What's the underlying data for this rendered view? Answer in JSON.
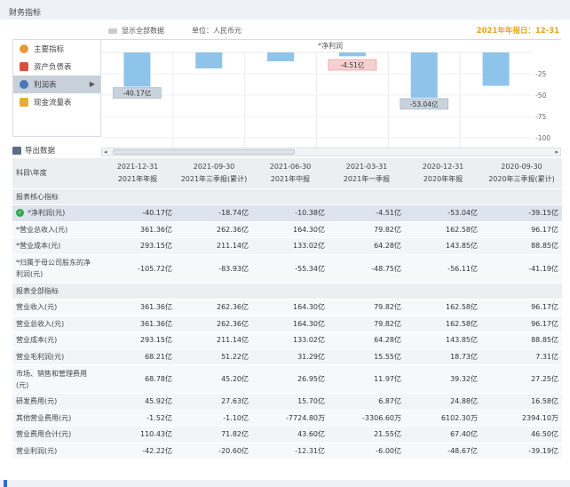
{
  "header": {
    "title": "财务指标"
  },
  "options": {
    "show_all": "显示全部数据",
    "unit": "单位：人民币元",
    "report_date": "2021年年报日：12-31"
  },
  "sidebar": {
    "items": [
      {
        "label": "主要指标",
        "icon": "orange-dot-icon",
        "color": "#e69a3a"
      },
      {
        "label": "资产负债表",
        "icon": "red-sheet-icon",
        "color": "#d94f3d"
      },
      {
        "label": "利润表",
        "icon": "globe-icon",
        "color": "#4a78b8",
        "active": true
      },
      {
        "label": "现金流量表",
        "icon": "cash-flow-icon",
        "color": "#e4b02c"
      }
    ]
  },
  "chart_data": {
    "type": "bar",
    "title": "*净利润",
    "categories": [
      "2021-12-31",
      "2021-09-30",
      "2021-06-30",
      "2021-03-31",
      "2020-12-31",
      "2020-09-30"
    ],
    "values": [
      -40.17,
      -18.74,
      -10.38,
      -4.51,
      -53.04,
      -39.15
    ],
    "labels": [
      "-40.17亿",
      "",
      "",
      "-4.51亿",
      "-53.04亿",
      ""
    ],
    "ylim": [
      -110,
      0
    ],
    "yticks": [
      "-25",
      "-50",
      "-75",
      "-100"
    ],
    "grid": true
  },
  "export_label": "导出数据",
  "table": {
    "corner": "科目\\年度",
    "columns": [
      {
        "date": "2021-12-31",
        "type": "2021年年报"
      },
      {
        "date": "2021-09-30",
        "type": "2021年三季报(累计)"
      },
      {
        "date": "2021-06-30",
        "type": "2021年中报"
      },
      {
        "date": "2021-03-31",
        "type": "2021年一季报"
      },
      {
        "date": "2020-12-31",
        "type": "2020年年报"
      },
      {
        "date": "2020-09-30",
        "type": "2020年三季报(累计)"
      }
    ],
    "section1": "报表核心指标",
    "section2": "报表全部指标",
    "rows1": [
      {
        "label": "*净利润(元)",
        "values": [
          "-40.17亿",
          "-18.74亿",
          "-10.38亿",
          "-4.51亿",
          "-53.04亿",
          "-39.15亿"
        ]
      },
      {
        "label": "*营业总收入(元)",
        "values": [
          "361.36亿",
          "262.36亿",
          "164.30亿",
          "79.82亿",
          "162.58亿",
          "96.17亿"
        ]
      },
      {
        "label": "*营业成本(元)",
        "values": [
          "293.15亿",
          "211.14亿",
          "133.02亿",
          "64.28亿",
          "143.85亿",
          "88.85亿"
        ]
      },
      {
        "label": "*归属于母公司股东的净利润(元)",
        "values": [
          "-105.72亿",
          "-83.93亿",
          "-55.34亿",
          "-48.75亿",
          "-56.11亿",
          "-41.19亿"
        ]
      }
    ],
    "rows2": [
      {
        "label": "营业收入(元)",
        "values": [
          "361.36亿",
          "262.36亿",
          "164.30亿",
          "79.82亿",
          "162.58亿",
          "96.17亿"
        ]
      },
      {
        "label": "营业总收入(元)",
        "values": [
          "361.36亿",
          "262.36亿",
          "164.30亿",
          "79.82亿",
          "162.58亿",
          "96.17亿"
        ]
      },
      {
        "label": "营业成本(元)",
        "values": [
          "293.15亿",
          "211.14亿",
          "133.02亿",
          "64.28亿",
          "143.85亿",
          "88.85亿"
        ]
      },
      {
        "label": "营业毛利润(元)",
        "values": [
          "68.21亿",
          "51.22亿",
          "31.29亿",
          "15.55亿",
          "18.73亿",
          "7.31亿"
        ]
      },
      {
        "label": "市场、销售和管理费用(元)",
        "values": [
          "68.78亿",
          "45.20亿",
          "26.95亿",
          "11.97亿",
          "39.32亿",
          "27.25亿"
        ]
      },
      {
        "label": "研发费用(元)",
        "values": [
          "45.92亿",
          "27.63亿",
          "15.70亿",
          "6.87亿",
          "24.88亿",
          "16.58亿"
        ]
      },
      {
        "label": "其他营业费用(元)",
        "values": [
          "-1.52亿",
          "-1.10亿",
          "-7724.80万",
          "-3306.60万",
          "6102.30万",
          "2394.10万"
        ]
      },
      {
        "label": "营业费用合计(元)",
        "values": [
          "110.43亿",
          "71.82亿",
          "43.60亿",
          "21.55亿",
          "67.40亿",
          "46.50亿"
        ]
      },
      {
        "label": "营业利润(元)",
        "values": [
          "-42.22亿",
          "-20.60亿",
          "-12.31亿",
          "-6.00亿",
          "-48.67亿",
          "-39.19亿"
        ]
      }
    ]
  }
}
